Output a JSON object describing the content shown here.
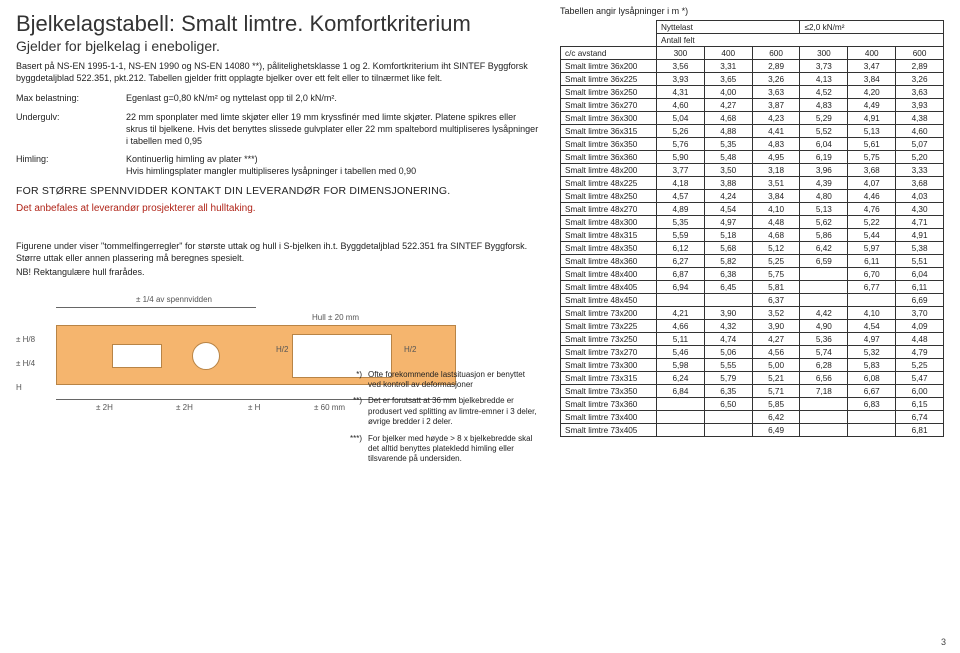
{
  "document": {
    "title": "Bjelkelagstabell: Smalt limtre. Komfortkriterium",
    "subtitle": "Gjelder for bjelkelag i eneboliger.",
    "basis": "Basert på NS-EN 1995-1-1, NS-EN 1990 og NS-EN 14080 **), pålitelighetsklasse 1 og 2. Komfortkriterium iht SINTEF Byggforsk byggdetaljblad 522.351, pkt.212. Tabellen gjelder fritt opplagte bjelker over ett felt eller to tilnærmet like felt.",
    "defs": {
      "max_label": "Max belastning:",
      "max_value": "Egenlast g=0,80 kN/m² og nyttelast opp til 2,0 kN/m².",
      "under_label": "Undergulv:",
      "under_value": "22 mm sponplater med limte skjøter eller 19 mm kryssfinér med limte skjøter. Platene spikres eller skrus til bjelkene. Hvis det benyttes slissede gulvplater eller 22 mm spaltebord multipliseres lysåpninger i tabellen med 0,95",
      "him_label": "Himling:",
      "him_value": "Kontinuerlig himling av plater ***)\nHvis himlingsplater mangler multipliseres lysåpninger i tabellen med 0,90"
    },
    "contact": "FOR STØRRE SPENNVIDDER KONTAKT DIN LEVERANDØR FOR DIMENSJONERING.",
    "red_note": "Det anbefales at leverandør prosjekterer all hulltaking.",
    "figure_note": "Figurene under viser \"tommelfingerregler\" for største uttak og hull i S-bjelken ih.t. Byggdetaljblad 522.351 fra SINTEF Byggforsk. Større uttak eller annen plassering må beregnes spesielt.",
    "nb": "NB! Rektangulære hull frarådes.",
    "beam_labels": {
      "top_span": "± 1/4 av spennvidden",
      "hb8": "± H/8",
      "h4": "± H/4",
      "h2a": "H/2",
      "h2b": "H/2",
      "h": "H",
      "hull20": "Hull ± 20 mm",
      "d2h": "± 2H",
      "d2h2": "± 2H",
      "dh": "± H",
      "d60": "± 60 mm"
    },
    "footnotes": {
      "f1_mark": "*)",
      "f1": "Ofte forekommende lastsituasjon er benyttet ved kontroll av deformasjoner",
      "f2_mark": "**)",
      "f2": "Det er forutsatt at 36 mm bjelkebredde er produsert ved splitting av limtre-emner i 3 deler, øvrige bredder i 2 deler.",
      "f3_mark": "***)",
      "f3": "For bjelker med høyde > 8 x bjelkebredde skal det alltid benyttes platekledd himling eller tilsvarende på undersiden."
    },
    "page_num": "3"
  },
  "table": {
    "caption": "Tabellen angir lysåpninger i m *)",
    "header": {
      "nyttelast": "Nyttelast",
      "nyttelast_val": "≤2,0 kN/m²",
      "antall": "Antall felt",
      "cc": "c/c avstand",
      "cc_vals": [
        "300",
        "400",
        "600",
        "300",
        "400",
        "600"
      ]
    },
    "rows": [
      {
        "dim": "Smalt limtre 36x200",
        "v": [
          "3,56",
          "3,31",
          "2,89",
          "3,73",
          "3,47",
          "2,89"
        ]
      },
      {
        "dim": "Smalt limtre 36x225",
        "v": [
          "3,93",
          "3,65",
          "3,26",
          "4,13",
          "3,84",
          "3,26"
        ]
      },
      {
        "dim": "Smalt limtre 36x250",
        "v": [
          "4,31",
          "4,00",
          "3,63",
          "4,52",
          "4,20",
          "3,63"
        ]
      },
      {
        "dim": "Smalt limtre 36x270",
        "v": [
          "4,60",
          "4,27",
          "3,87",
          "4,83",
          "4,49",
          "3,93"
        ]
      },
      {
        "dim": "Smalt limtre 36x300",
        "v": [
          "5,04",
          "4,68",
          "4,23",
          "5,29",
          "4,91",
          "4,38"
        ]
      },
      {
        "dim": "Smalt limtre 36x315",
        "v": [
          "5,26",
          "4,88",
          "4,41",
          "5,52",
          "5,13",
          "4,60"
        ]
      },
      {
        "dim": "Smalt limtre 36x350",
        "v": [
          "5,76",
          "5,35",
          "4,83",
          "6,04",
          "5,61",
          "5,07"
        ]
      },
      {
        "dim": "Smalt limtre 36x360",
        "v": [
          "5,90",
          "5,48",
          "4,95",
          "6,19",
          "5,75",
          "5,20"
        ]
      },
      {
        "dim": "Smalt limtre 48x200",
        "v": [
          "3,77",
          "3,50",
          "3,18",
          "3,96",
          "3,68",
          "3,33"
        ]
      },
      {
        "dim": "Smalt limtre 48x225",
        "v": [
          "4,18",
          "3,88",
          "3,51",
          "4,39",
          "4,07",
          "3,68"
        ]
      },
      {
        "dim": "Smalt limtre 48x250",
        "v": [
          "4,57",
          "4,24",
          "3,84",
          "4,80",
          "4,46",
          "4,03"
        ]
      },
      {
        "dim": "Smalt limtre 48x270",
        "v": [
          "4,89",
          "4,54",
          "4,10",
          "5,13",
          "4,76",
          "4,30"
        ]
      },
      {
        "dim": "Smalt limtre 48x300",
        "v": [
          "5,35",
          "4,97",
          "4,48",
          "5,62",
          "5,22",
          "4,71"
        ]
      },
      {
        "dim": "Smalt limtre 48x315",
        "v": [
          "5,59",
          "5,18",
          "4,68",
          "5,86",
          "5,44",
          "4,91"
        ]
      },
      {
        "dim": "Smalt limtre 48x350",
        "v": [
          "6,12",
          "5,68",
          "5,12",
          "6,42",
          "5,97",
          "5,38"
        ]
      },
      {
        "dim": "Smalt limtre 48x360",
        "v": [
          "6,27",
          "5,82",
          "5,25",
          "6,59",
          "6,11",
          "5,51"
        ]
      },
      {
        "dim": "Smalt limtre 48x400",
        "v": [
          "6,87",
          "6,38",
          "5,75",
          "",
          "6,70",
          "6,04"
        ]
      },
      {
        "dim": "Smalt limtre 48x405",
        "v": [
          "6,94",
          "6,45",
          "5,81",
          "",
          "6,77",
          "6,11"
        ]
      },
      {
        "dim": "Smalt limtre 48x450",
        "v": [
          "",
          "",
          "6,37",
          "",
          "",
          "6,69"
        ]
      },
      {
        "dim": "Smalt limtre 73x200",
        "v": [
          "4,21",
          "3,90",
          "3,52",
          "4,42",
          "4,10",
          "3,70"
        ]
      },
      {
        "dim": "Smalt limtre 73x225",
        "v": [
          "4,66",
          "4,32",
          "3,90",
          "4,90",
          "4,54",
          "4,09"
        ]
      },
      {
        "dim": "Smalt limtre 73x250",
        "v": [
          "5,11",
          "4,74",
          "4,27",
          "5,36",
          "4,97",
          "4,48"
        ]
      },
      {
        "dim": "Smalt limtre 73x270",
        "v": [
          "5,46",
          "5,06",
          "4,56",
          "5,74",
          "5,32",
          "4,79"
        ]
      },
      {
        "dim": "Smalt limtre 73x300",
        "v": [
          "5,98",
          "5,55",
          "5,00",
          "6,28",
          "5,83",
          "5,25"
        ]
      },
      {
        "dim": "Smalt limtre 73x315",
        "v": [
          "6,24",
          "5,79",
          "5,21",
          "6,56",
          "6,08",
          "5,47"
        ]
      },
      {
        "dim": "Smalt limtre 73x350",
        "v": [
          "6,84",
          "6,35",
          "5,71",
          "7,18",
          "6,67",
          "6,00"
        ]
      },
      {
        "dim": "Smalt limtre 73x360",
        "v": [
          "",
          "6,50",
          "5,85",
          "",
          "6,83",
          "6,15"
        ]
      },
      {
        "dim": "Smalt limtre 73x400",
        "v": [
          "",
          "",
          "6,42",
          "",
          "",
          "6,74"
        ]
      },
      {
        "dim": "Smalt limtre 73x405",
        "v": [
          "",
          "",
          "6,49",
          "",
          "",
          "6,81"
        ]
      }
    ]
  },
  "style": {
    "background": "#ffffff",
    "text_color": "#222222",
    "red_color": "#b02418",
    "beam_fill": "#f5b56e",
    "beam_border": "#b88446",
    "table_border": "#333333",
    "title_fontsize": 22,
    "subtitle_fontsize": 14,
    "body_fontsize": 9,
    "table_fontsize": 8.2
  }
}
